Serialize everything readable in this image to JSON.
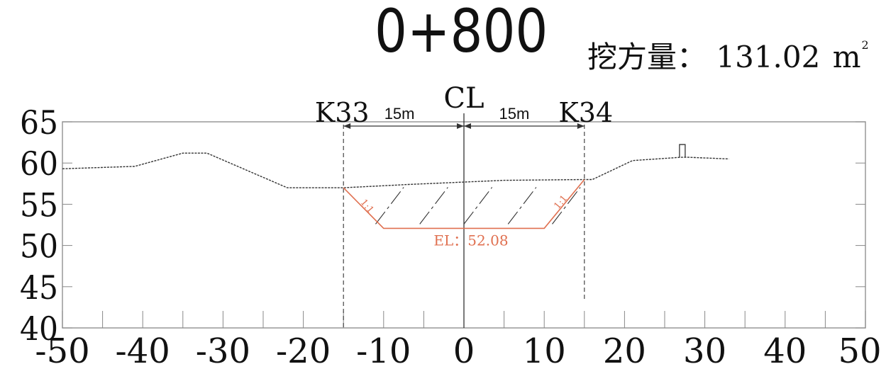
{
  "header": {
    "station": "0+800",
    "excavation_label": "挖方量：",
    "excavation_value": "131.02",
    "excavation_unit": "m",
    "excavation_unit_sup": "2"
  },
  "markers": {
    "left_stake": "K33",
    "right_stake": "K34",
    "centerline": "CL",
    "left_width": "15m",
    "right_width": "15m"
  },
  "design": {
    "elevation_label": "EL：52.08",
    "left_slope": "1:1",
    "right_slope": "1:1",
    "color": "#e07050",
    "bottom_elevation": 52.08,
    "bottom_offsets": [
      -10,
      10
    ],
    "top_offsets": [
      -15,
      15
    ]
  },
  "chart_data": {
    "type": "line",
    "x_ticks": [
      "-50",
      "-40",
      "-30",
      "-20",
      "-10",
      "0",
      "10",
      "20",
      "30",
      "40",
      "50"
    ],
    "y_ticks": [
      "40",
      "45",
      "50",
      "55",
      "60",
      "65"
    ],
    "xlim": [
      -50,
      50
    ],
    "ylim": [
      40,
      65
    ],
    "ground_profile": [
      {
        "x": -50,
        "y": 59.3
      },
      {
        "x": -41,
        "y": 59.6
      },
      {
        "x": -35,
        "y": 61.2
      },
      {
        "x": -32,
        "y": 61.2
      },
      {
        "x": -22,
        "y": 57.0
      },
      {
        "x": -15,
        "y": 57.0
      },
      {
        "x": -7,
        "y": 57.4
      },
      {
        "x": 5,
        "y": 57.9
      },
      {
        "x": 15,
        "y": 58.0
      },
      {
        "x": 16,
        "y": 58.0
      },
      {
        "x": 21,
        "y": 60.3
      },
      {
        "x": 27,
        "y": 60.7
      },
      {
        "x": 28,
        "y": 60.7
      },
      {
        "x": 33,
        "y": 60.5
      }
    ],
    "design_section": [
      {
        "x": -15,
        "y": 57.0
      },
      {
        "x": -10,
        "y": 52.08
      },
      {
        "x": 10,
        "y": 52.08
      },
      {
        "x": 15,
        "y": 58.0
      }
    ]
  }
}
